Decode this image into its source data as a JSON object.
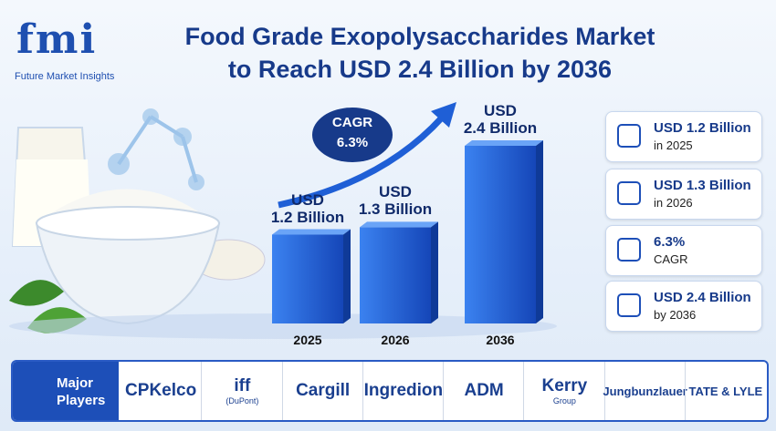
{
  "header": {
    "logo": "fmi",
    "brand": "Future Market Insights"
  },
  "chart_data": {
    "type": "bar",
    "title": "Food Grade Exopolysaccharides Market\nto Reach USD 2.4 Billion by 2036",
    "categories": [
      "2025",
      "2026",
      "2036"
    ],
    "values": [
      1.2,
      1.3,
      2.4
    ],
    "value_labels": [
      "USD\n1.2 Billion",
      "USD\n1.3 Billion",
      "USD\n2.4 Billion"
    ],
    "color": "#1f5fd6",
    "annotation": "CAGR\n6.3%"
  },
  "cards": [
    {
      "value": "USD 1.2 Billion",
      "caption": "in 2025"
    },
    {
      "value": "USD 1.3 Billion",
      "caption": "in 2026"
    },
    {
      "value": "6.3%",
      "caption": "CAGR"
    },
    {
      "value": "USD 2.4 Billion",
      "caption": "by 2036"
    }
  ],
  "players": {
    "label": "Major\nPlayers",
    "names": [
      {
        "name": "CPKelco"
      },
      {
        "name": "iff",
        "sub": "(DuPont)"
      },
      {
        "name": "Cargill"
      },
      {
        "name": "Ingredion"
      },
      {
        "name": "ADM"
      },
      {
        "name": "Kerry",
        "sub": "Group"
      },
      {
        "name": "Jungbunzlauer"
      },
      {
        "name": "TATE & LYLE"
      }
    ]
  }
}
